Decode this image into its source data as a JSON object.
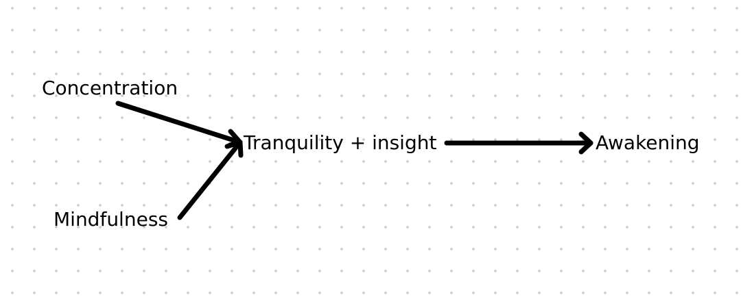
{
  "diagram": {
    "nodes": {
      "concentration": "Concentration",
      "mindfulness": "Mindfulness",
      "tranquility_insight": "Tranquility + insight",
      "awakening": "Awakening"
    },
    "edges": [
      {
        "from": "Concentration",
        "to": "Tranquility + insight"
      },
      {
        "from": "Mindfulness",
        "to": "Tranquility + insight"
      },
      {
        "from": "Tranquility + insight",
        "to": "Awakening"
      }
    ],
    "colors": {
      "background": "#ffffff",
      "grid_dot": "#c9c9c9",
      "ink": "#000000"
    }
  }
}
